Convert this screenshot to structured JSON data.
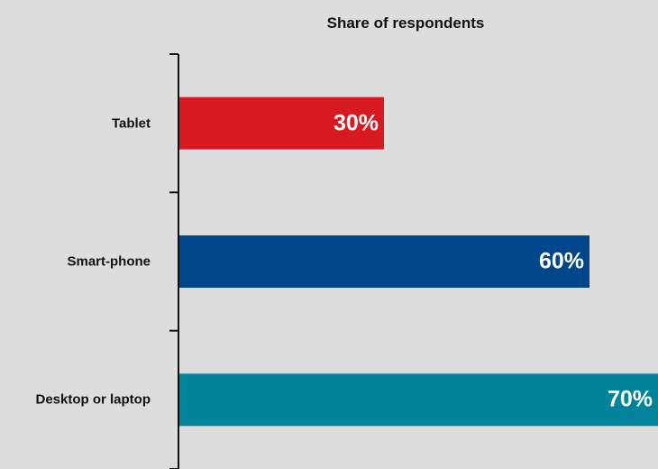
{
  "chart_data": {
    "type": "bar",
    "orientation": "horizontal",
    "title": "Share of respondents",
    "xlabel": "",
    "ylabel": "",
    "categories": [
      "Tablet",
      "Smart-phone",
      "Desktop or laptop"
    ],
    "values": [
      30,
      60,
      70
    ],
    "value_labels": [
      "30%",
      "60%",
      "70%"
    ],
    "colors": [
      "#d71921",
      "#00468b",
      "#00839b"
    ],
    "xlim": [
      0,
      70
    ],
    "grid": false,
    "legend": "none"
  }
}
